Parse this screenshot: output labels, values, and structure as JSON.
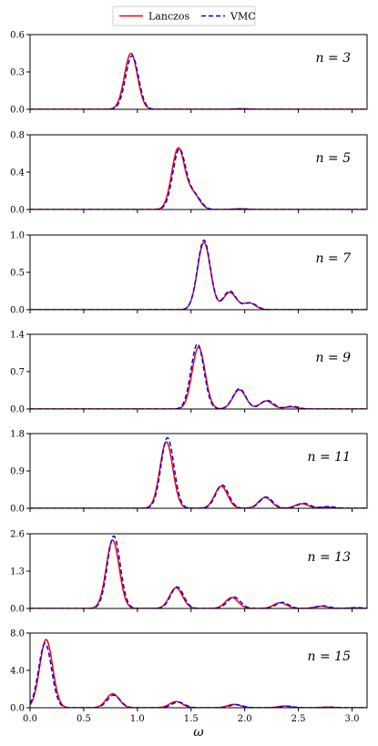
{
  "legend": {
    "entries": [
      {
        "label": "Lanczos",
        "color": "#ff0000",
        "style": "solid"
      },
      {
        "label": "VMC",
        "color": "#0000ff",
        "style": "dashed"
      }
    ]
  },
  "chart_data": {
    "type": "line",
    "xlabel": "ω",
    "xlim": [
      0.0,
      3.14
    ],
    "xticks": [
      "0.0",
      "0.5",
      "1.0",
      "1.5",
      "2.0",
      "2.5",
      "3.0"
    ],
    "xtick_values": [
      0.0,
      0.5,
      1.0,
      1.5,
      2.0,
      2.5,
      3.0
    ],
    "gaussian_width": 0.06,
    "grid": false,
    "legend_position": "top-center",
    "panels": [
      {
        "label": "n = 3",
        "ylim": [
          0,
          0.6
        ],
        "yticks": [
          "0.0",
          "0.3",
          "0.6"
        ],
        "ytick_values": [
          0,
          0.3,
          0.6
        ],
        "series": [
          {
            "name": "Lanczos",
            "peaks": [
              [
                0.94,
                0.45
              ],
              [
                1.97,
                0.005
              ]
            ]
          },
          {
            "name": "VMC",
            "peaks": [
              [
                0.95,
                0.43
              ],
              [
                1.97,
                0.003
              ]
            ]
          }
        ]
      },
      {
        "label": "n = 5",
        "ylim": [
          0,
          0.8
        ],
        "yticks": [
          "0.0",
          "0.4",
          "0.8"
        ],
        "ytick_values": [
          0,
          0.4,
          0.8
        ],
        "series": [
          {
            "name": "Lanczos",
            "peaks": [
              [
                1.38,
                0.65
              ],
              [
                1.52,
                0.16
              ],
              [
                1.96,
                0.008
              ]
            ]
          },
          {
            "name": "VMC",
            "peaks": [
              [
                1.39,
                0.64
              ],
              [
                1.53,
                0.15
              ],
              [
                1.96,
                0.006
              ]
            ]
          }
        ]
      },
      {
        "label": "n = 7",
        "ylim": [
          0,
          1.0
        ],
        "yticks": [
          "0.0",
          "0.5",
          "1.0"
        ],
        "ytick_values": [
          0,
          0.5,
          1.0
        ],
        "series": [
          {
            "name": "Lanczos",
            "peaks": [
              [
                1.62,
                0.9
              ],
              [
                1.86,
                0.23
              ],
              [
                2.04,
                0.09
              ]
            ]
          },
          {
            "name": "VMC",
            "peaks": [
              [
                1.62,
                0.93
              ],
              [
                1.86,
                0.25
              ],
              [
                2.05,
                0.09
              ]
            ]
          }
        ]
      },
      {
        "label": "n = 9",
        "ylim": [
          0,
          1.4
        ],
        "yticks": [
          "0.0",
          "0.7",
          "1.4"
        ],
        "ytick_values": [
          0,
          0.7,
          1.4
        ],
        "series": [
          {
            "name": "Lanczos",
            "peaks": [
              [
                1.57,
                1.16
              ],
              [
                1.95,
                0.36
              ],
              [
                2.2,
                0.15
              ],
              [
                2.43,
                0.04
              ]
            ]
          },
          {
            "name": "VMC",
            "peaks": [
              [
                1.56,
                1.22
              ],
              [
                1.95,
                0.38
              ],
              [
                2.21,
                0.16
              ],
              [
                2.44,
                0.05
              ]
            ]
          }
        ]
      },
      {
        "label": "n = 11",
        "ylim": [
          0,
          1.8
        ],
        "yticks": [
          "0.0",
          "0.9",
          "1.8"
        ],
        "ytick_values": [
          0,
          0.9,
          1.8
        ],
        "series": [
          {
            "name": "Lanczos",
            "peaks": [
              [
                1.27,
                1.6
              ],
              [
                1.78,
                0.53
              ],
              [
                2.19,
                0.26
              ],
              [
                2.53,
                0.11
              ],
              [
                2.76,
                0.03
              ]
            ]
          },
          {
            "name": "VMC",
            "peaks": [
              [
                1.28,
                1.7
              ],
              [
                1.79,
                0.56
              ],
              [
                2.2,
                0.27
              ],
              [
                2.55,
                0.12
              ],
              [
                2.78,
                0.04
              ]
            ]
          }
        ]
      },
      {
        "label": "n = 13",
        "ylim": [
          0,
          2.6
        ],
        "yticks": [
          "0.0",
          "1.3",
          "2.6"
        ],
        "ytick_values": [
          0,
          1.3,
          2.6
        ],
        "series": [
          {
            "name": "Lanczos",
            "peaks": [
              [
                0.77,
                2.38
              ],
              [
                1.36,
                0.72
              ],
              [
                1.88,
                0.38
              ],
              [
                2.33,
                0.2
              ],
              [
                2.71,
                0.08
              ],
              [
                3.02,
                0.02
              ]
            ]
          },
          {
            "name": "VMC",
            "peaks": [
              [
                0.78,
                2.52
              ],
              [
                1.37,
                0.75
              ],
              [
                1.9,
                0.4
              ],
              [
                2.35,
                0.21
              ],
              [
                2.73,
                0.09
              ],
              [
                3.04,
                0.03
              ]
            ]
          }
        ]
      },
      {
        "label": "n = 15",
        "ylim": [
          0,
          8.0
        ],
        "yticks": [
          "0.0",
          "4.0",
          "8.0"
        ],
        "ytick_values": [
          0,
          4.0,
          8.0
        ],
        "series": [
          {
            "name": "Lanczos",
            "peaks": [
              [
                0.15,
                7.3
              ],
              [
                0.77,
                1.5
              ],
              [
                1.36,
                0.66
              ],
              [
                1.9,
                0.36
              ],
              [
                2.37,
                0.18
              ],
              [
                2.77,
                0.06
              ]
            ]
          },
          {
            "name": "VMC",
            "peaks": [
              [
                0.14,
                6.9
              ],
              [
                0.78,
                1.35
              ],
              [
                1.38,
                0.6
              ],
              [
                1.92,
                0.33
              ],
              [
                2.39,
                0.17
              ],
              [
                2.8,
                0.06
              ]
            ]
          }
        ]
      }
    ]
  }
}
